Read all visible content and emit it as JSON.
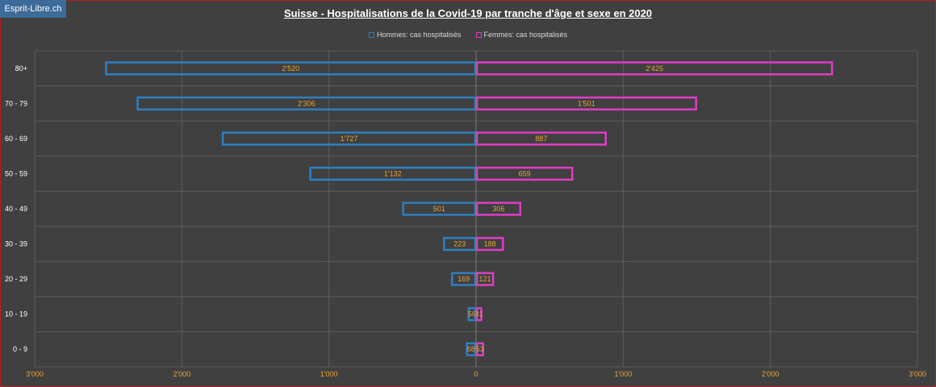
{
  "badge": "Esprit-Libre.ch",
  "chart_data": {
    "type": "bar",
    "orientation": "horizontal",
    "title": "Suisse - Hospitalisations de la Covid-19 par tranche d'âge et sexe en 2020",
    "categories": [
      "80+",
      "70 - 79",
      "60 - 69",
      "50 - 59",
      "40 - 49",
      "30 - 39",
      "20 - 29",
      "10 - 19",
      "0 - 9"
    ],
    "series": [
      {
        "name": "Hommes: cas hospitalisés",
        "color": "#2e7fc1",
        "side": "left",
        "values": [
          2520,
          2306,
          1727,
          1132,
          501,
          223,
          169,
          56,
          68
        ],
        "labels": [
          "2'520",
          "2'306",
          "1'727",
          "1'132",
          "501",
          "223",
          "169",
          "56",
          "68"
        ]
      },
      {
        "name": "Femmes: cas hospitalisés",
        "color": "#e03cc8",
        "side": "right",
        "values": [
          2425,
          1501,
          887,
          659,
          306,
          188,
          121,
          41,
          53
        ],
        "labels": [
          "2'425",
          "1'501",
          "887",
          "659",
          "306",
          "188",
          "121",
          "41",
          "53"
        ]
      }
    ],
    "xlim": [
      -3000,
      3000
    ],
    "xticks": [
      -3000,
      -2000,
      -1000,
      0,
      1000,
      2000,
      3000
    ],
    "xtick_labels": [
      "3'000",
      "2'000",
      "1'000",
      "0",
      "1'000",
      "2'000",
      "3'000"
    ],
    "legend_position": "top",
    "grid": true
  }
}
